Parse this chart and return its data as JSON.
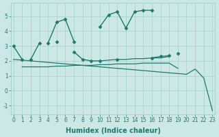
{
  "xlabel": "Humidex (Indice chaleur)",
  "x_values": [
    0,
    1,
    2,
    3,
    4,
    5,
    6,
    7,
    8,
    9,
    10,
    11,
    12,
    13,
    14,
    15,
    16,
    17,
    18,
    19,
    20,
    21,
    22,
    23
  ],
  "series": [
    {
      "name": "zigzag_top",
      "y": [
        3.0,
        2.1,
        null,
        null,
        3.2,
        4.6,
        4.8,
        3.3,
        null,
        null,
        4.3,
        5.1,
        5.3,
        4.2,
        5.3,
        5.4,
        5.4,
        null,
        null,
        2.5,
        null,
        null,
        null,
        null
      ],
      "color": "#1a7a6e",
      "marker": "D",
      "markersize": 2.5,
      "linewidth": 1.0
    },
    {
      "name": "middle_line",
      "y": [
        null,
        null,
        2.1,
        3.2,
        null,
        3.3,
        null,
        2.6,
        2.1,
        2.0,
        2.0,
        null,
        2.1,
        null,
        null,
        null,
        2.2,
        2.3,
        2.35,
        null,
        null,
        null,
        null,
        null
      ],
      "color": "#1a7a6e",
      "marker": "D",
      "markersize": 2.5,
      "linewidth": 1.0
    },
    {
      "name": "flat_line",
      "y": [
        null,
        1.6,
        1.6,
        1.6,
        1.6,
        1.65,
        1.65,
        1.7,
        1.7,
        1.7,
        1.75,
        1.75,
        1.8,
        1.8,
        1.8,
        1.85,
        1.85,
        1.85,
        1.85,
        1.5,
        null,
        null,
        null,
        null
      ],
      "color": "#1a7a6e",
      "marker": null,
      "linewidth": 0.9
    },
    {
      "name": "diagonal_line",
      "y": [
        2.1,
        2.05,
        2.0,
        1.95,
        1.9,
        1.85,
        1.8,
        1.75,
        1.7,
        1.65,
        1.6,
        1.55,
        1.5,
        1.45,
        1.4,
        1.35,
        1.3,
        1.25,
        1.2,
        1.15,
        1.1,
        1.45,
        0.85,
        -1.35
      ],
      "color": "#1a7a6e",
      "marker": null,
      "linewidth": 0.9
    },
    {
      "name": "rising_flat",
      "y": [
        null,
        null,
        null,
        null,
        null,
        null,
        null,
        null,
        null,
        null,
        2.0,
        2.05,
        2.1,
        2.1,
        2.15,
        2.15,
        2.2,
        2.2,
        2.3,
        null,
        null,
        null,
        null,
        null
      ],
      "color": "#1a7a6e",
      "marker": null,
      "linewidth": 0.9
    }
  ],
  "ylim": [
    -1.6,
    5.9
  ],
  "xlim": [
    -0.3,
    23.3
  ],
  "yticks": [
    -1,
    0,
    1,
    2,
    3,
    4,
    5
  ],
  "xticks": [
    0,
    1,
    2,
    3,
    4,
    5,
    6,
    7,
    8,
    9,
    10,
    11,
    12,
    13,
    14,
    15,
    16,
    17,
    18,
    19,
    20,
    21,
    22,
    23
  ],
  "bg_color": "#cce8e5",
  "grid_color": "#a8d4d0",
  "line_color": "#1a7a6e",
  "tick_fontsize": 5.5,
  "label_fontsize": 7.0
}
